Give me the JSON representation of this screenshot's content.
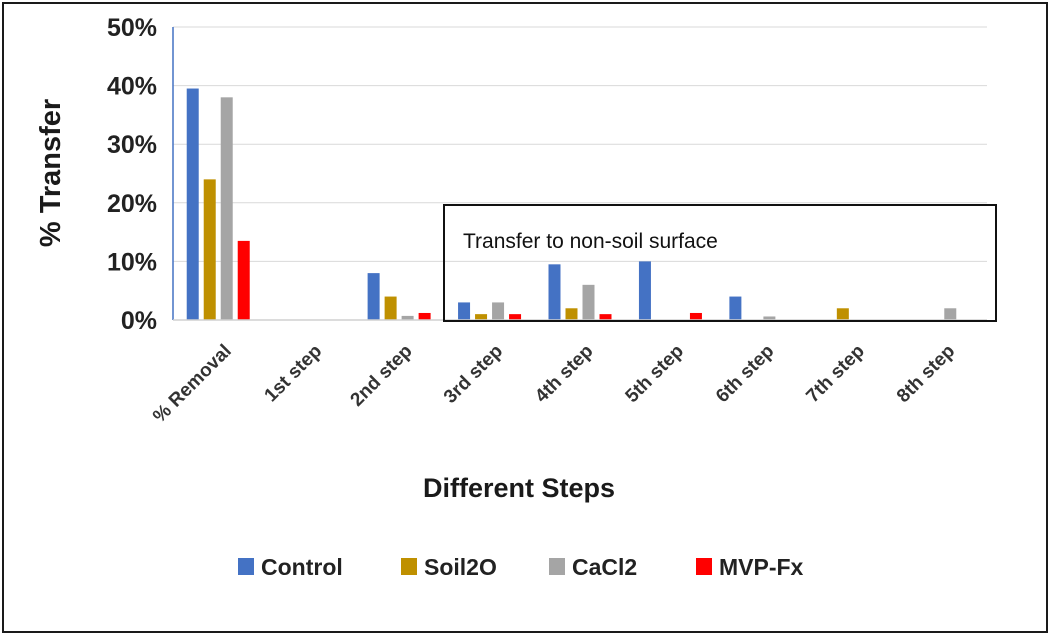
{
  "chart_data": {
    "type": "bar",
    "title": "",
    "xlabel": "Different Steps",
    "ylabel": "% Transfer",
    "ylim": [
      0,
      50
    ],
    "y_ticks": [
      "0%",
      "10%",
      "20%",
      "30%",
      "40%",
      "50%"
    ],
    "grid": true,
    "legend_position": "bottom",
    "categories": [
      "% Removal",
      "1st step",
      "2nd step",
      "3rd step",
      "4th step",
      "5th step",
      "6th step",
      "7th step",
      "8th step"
    ],
    "series": [
      {
        "name": "Control",
        "color": "#4472C4",
        "values": [
          39.5,
          0,
          8.0,
          3.0,
          9.5,
          10.0,
          4.0,
          0,
          0
        ]
      },
      {
        "name": "Soil2O",
        "color": "#BF9000",
        "values": [
          24.0,
          0,
          4.0,
          1.0,
          2.0,
          0,
          0,
          2.0,
          0
        ]
      },
      {
        "name": "CaCl2",
        "color": "#A5A5A5",
        "values": [
          38.0,
          0,
          0.7,
          3.0,
          6.0,
          0,
          0.6,
          0,
          2.0
        ]
      },
      {
        "name": "MVP-Fx",
        "color": "#FF0000",
        "values": [
          13.5,
          0,
          1.2,
          1.0,
          1.0,
          1.2,
          0,
          0,
          0
        ]
      }
    ],
    "annotation": "Transfer to non-soil surface"
  }
}
